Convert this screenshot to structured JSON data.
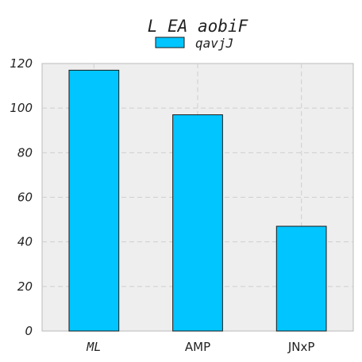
{
  "chart_data": {
    "type": "bar",
    "title": "L EA  aobiF",
    "categories": [
      "ML",
      "AMP",
      "JNxP"
    ],
    "series": [
      {
        "name": "qavjJ",
        "values": [
          117,
          97,
          47
        ]
      }
    ],
    "ylim": [
      0,
      120
    ],
    "yticks": [
      "0",
      "20",
      "40",
      "60",
      "80",
      "100",
      "120"
    ],
    "grid": true,
    "legend_position": "top-center",
    "colors": {
      "bar": "#00c5ff",
      "bar_edge": "#1a1a1a",
      "plot_background": "#eeeeee",
      "grid": "#cfcfcf"
    }
  }
}
